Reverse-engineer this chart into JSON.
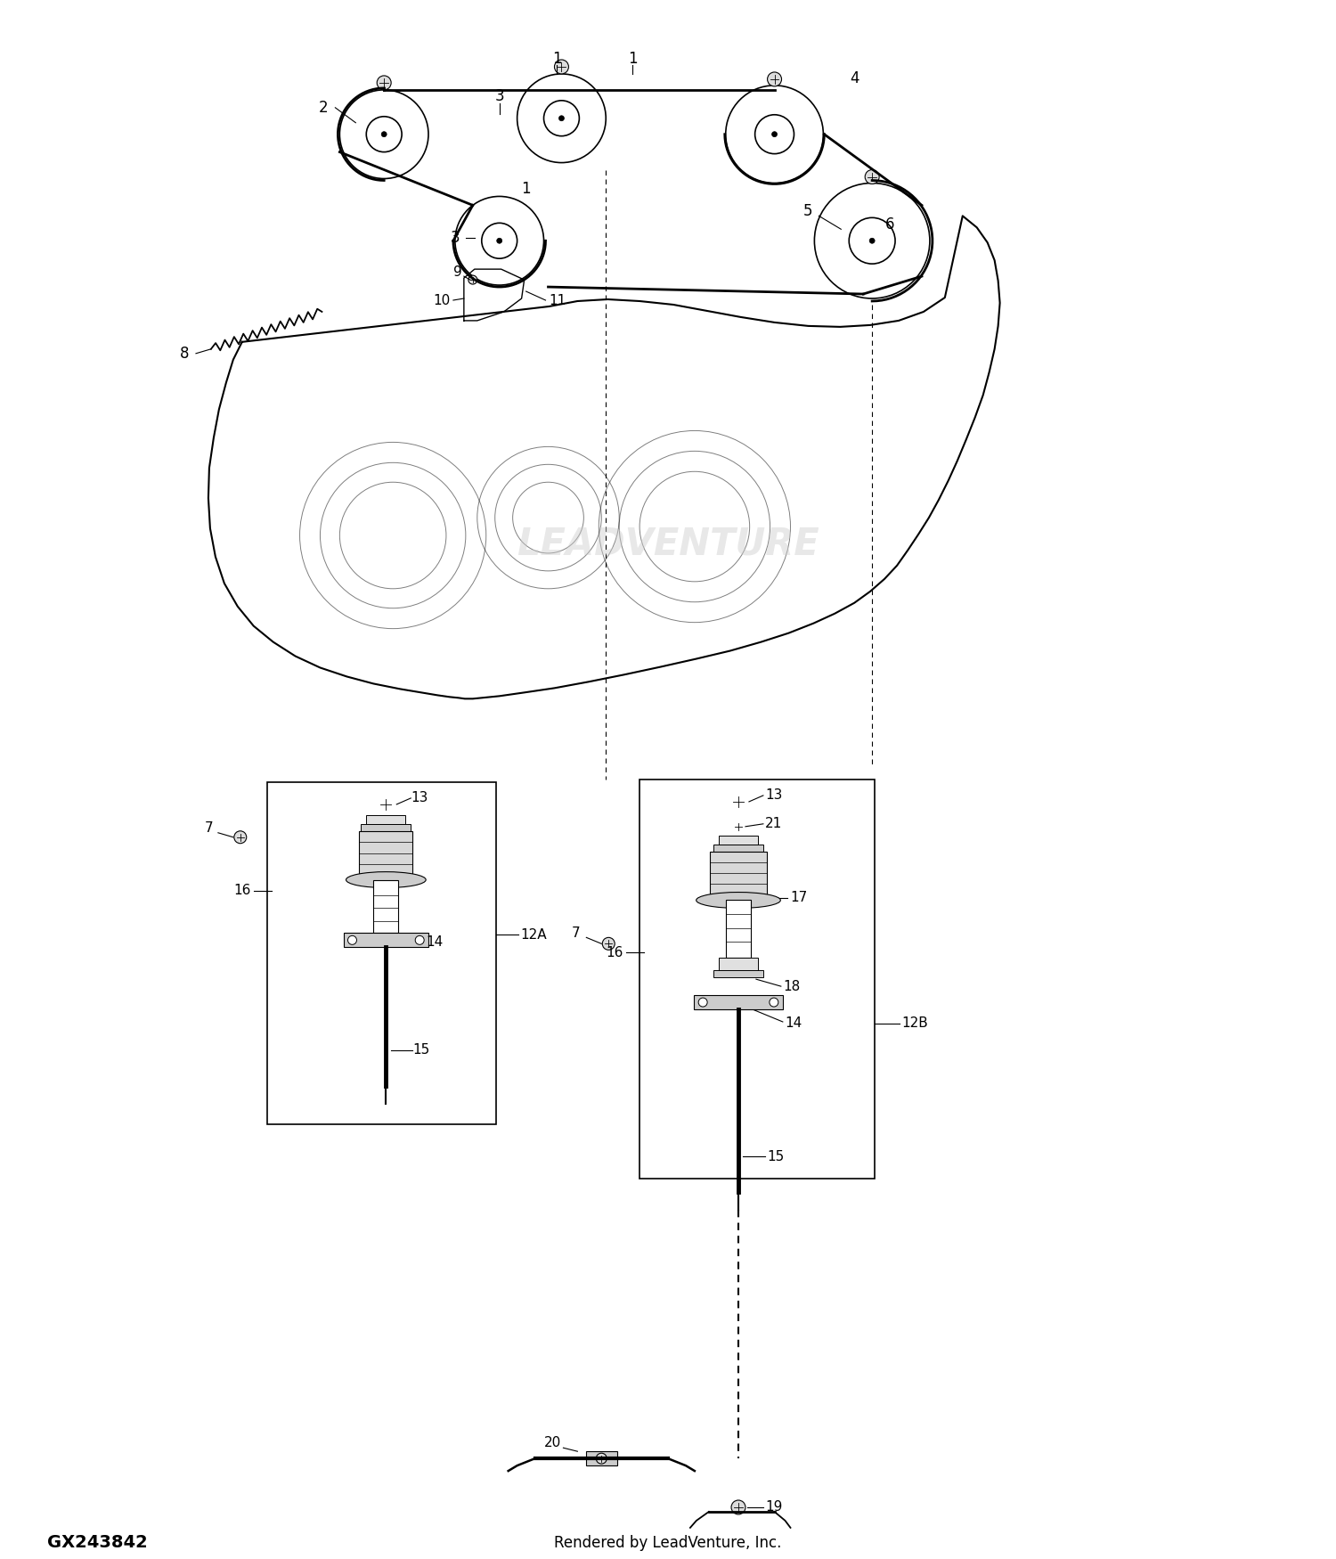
{
  "title": "",
  "footer_left": "GX243842",
  "footer_center": "Rendered by LeadVenture, Inc.",
  "bg_color": "#ffffff",
  "line_color": "#000000",
  "watermark": "LEADVENTURE"
}
